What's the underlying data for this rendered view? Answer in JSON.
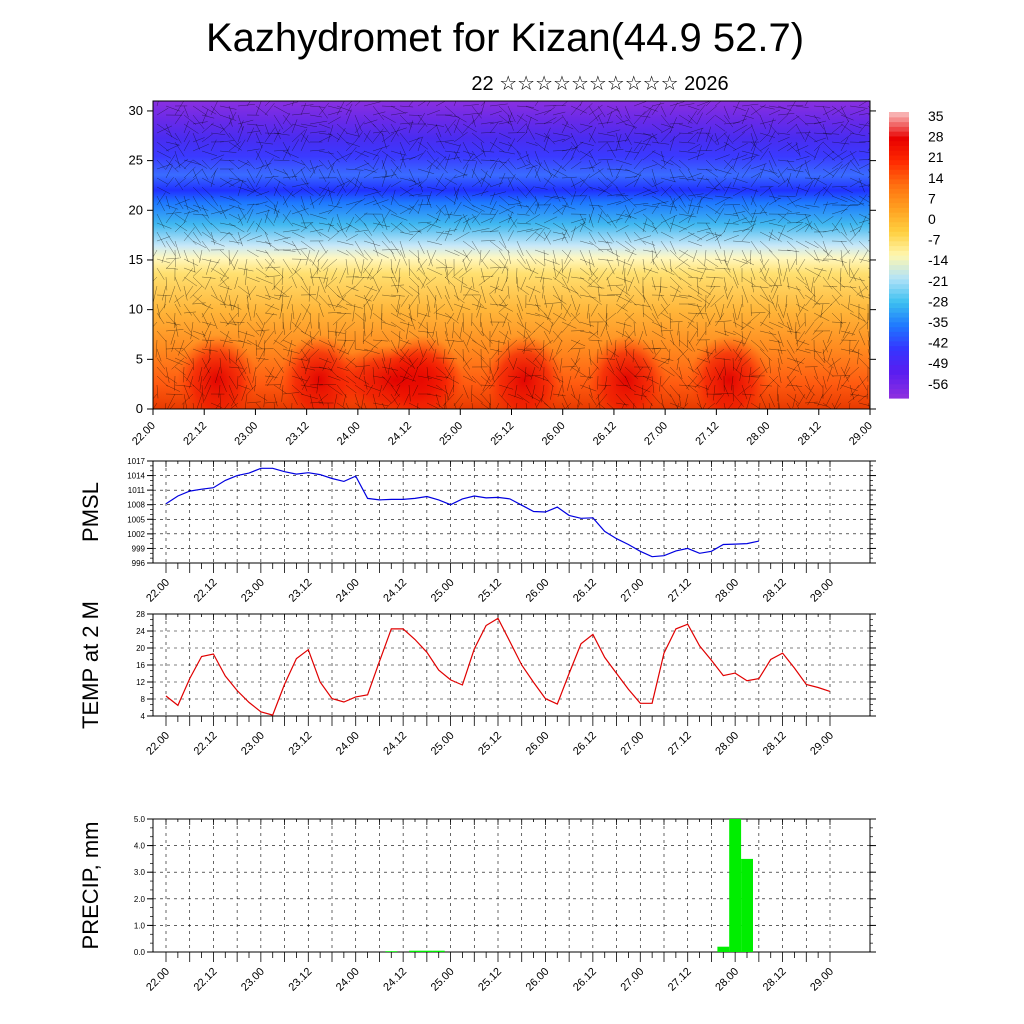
{
  "title": "Kazhydromet for Kizan(44.9 52.7)",
  "subtitle": "22 ☆☆☆☆☆☆☆☆☆☆ 2026",
  "colors": {
    "pmsl_line": "#0000e0",
    "temp_line": "#e00000",
    "precip_bar": "#00ee00",
    "grid": "#000000",
    "cross_section_palette": [
      "#8b2fe0",
      "#5a1df0",
      "#3535ff",
      "#1e78ff",
      "#3cc0f0",
      "#b0e2f8",
      "#fff7b0",
      "#ffd040",
      "#ffa020",
      "#ff7010",
      "#ff2a00",
      "#e80000",
      "#f8b0b0"
    ]
  },
  "chart_data": [
    {
      "type": "heatmap",
      "name": "cross-section",
      "title": "",
      "ylabel": "",
      "ylim": [
        0,
        31
      ],
      "yticks": [
        "0",
        "5",
        "10",
        "15",
        "20",
        "25",
        "30"
      ],
      "xticks": [
        "22.00",
        "22.12",
        "23.00",
        "23.12",
        "24.00",
        "24.12",
        "25.00",
        "25.12",
        "26.00",
        "26.12",
        "27.00",
        "27.12",
        "28.00",
        "28.12",
        "29.00"
      ],
      "colorbar_labels": [
        "35",
        "28",
        "21",
        "14",
        "7",
        "0",
        "-7",
        "-14",
        "-21",
        "-28",
        "-35",
        "-42",
        "-49",
        "-56"
      ]
    },
    {
      "type": "line",
      "name": "pmsl",
      "ylabel": "PMSL",
      "ylim": [
        996,
        1017
      ],
      "yticks": [
        "996",
        "999",
        "1002",
        "1005",
        "1008",
        "1011",
        "1014",
        "1017"
      ],
      "xticks": [
        "22.00",
        "22.12",
        "23.00",
        "23.12",
        "24.00",
        "24.12",
        "25.00",
        "25.12",
        "26.00",
        "26.12",
        "27.00",
        "27.12",
        "28.00",
        "28.12",
        "29.00"
      ],
      "values": [
        1008.2,
        1009.8,
        1010.8,
        1011.2,
        1011.5,
        1013.0,
        1014.0,
        1014.5,
        1015.5,
        1015.5,
        1014.8,
        1014.3,
        1014.6,
        1014.2,
        1013.4,
        1012.8,
        1013.9,
        1009.3,
        1009.0,
        1009.1,
        1009.1,
        1009.3,
        1009.7,
        1009.0,
        1008.0,
        1009.2,
        1009.8,
        1009.4,
        1009.5,
        1009.2,
        1007.9,
        1006.6,
        1006.5,
        1007.5,
        1005.8,
        1005.2,
        1005.3,
        1002.5,
        1001.0,
        999.8,
        998.4,
        997.3,
        997.5,
        998.5,
        999.0,
        998.0,
        998.4,
        999.8,
        999.9,
        1000.0,
        1000.5
      ],
      "x_start_hour": 0,
      "x_step_hours": 3
    },
    {
      "type": "line",
      "name": "temp2m",
      "ylabel": "TEMP at 2 M",
      "ylim": [
        4,
        28
      ],
      "yticks": [
        "4",
        "8",
        "12",
        "16",
        "20",
        "24",
        "28"
      ],
      "xticks": [
        "22.00",
        "22.12",
        "23.00",
        "23.12",
        "24.00",
        "24.12",
        "25.00",
        "25.12",
        "26.00",
        "26.12",
        "27.00",
        "27.12",
        "28.00",
        "28.12",
        "29.00"
      ],
      "values": [
        8.7,
        6.5,
        12.8,
        18.0,
        18.6,
        13.4,
        10.0,
        7.2,
        5.0,
        4.2,
        11.5,
        17.5,
        19.6,
        12.0,
        8.1,
        7.3,
        8.5,
        9.0,
        16.8,
        24.5,
        24.5,
        22.0,
        19.0,
        14.8,
        12.5,
        11.3,
        19.8,
        25.3,
        27.0,
        21.5,
        16.0,
        11.9,
        8.1,
        6.8,
        14.0,
        21.0,
        23.2,
        17.8,
        14.0,
        10.3,
        7.0,
        7.0,
        18.8,
        24.5,
        25.6,
        20.5,
        17.1,
        13.5,
        14.1,
        12.3,
        12.8,
        17.3,
        18.8,
        15.3,
        11.4,
        10.7,
        9.8
      ],
      "x_start_hour": 0,
      "x_step_hours": 3
    },
    {
      "type": "bar",
      "name": "precip",
      "ylabel": "PRECIP, mm",
      "ylim": [
        0,
        5
      ],
      "yticks": [
        "0.0",
        "1.0",
        "2.0",
        "3.0",
        "4.0",
        "5.0"
      ],
      "xticks": [
        "22.00",
        "22.12",
        "23.00",
        "23.12",
        "24.00",
        "24.12",
        "25.00",
        "25.12",
        "26.00",
        "26.12",
        "27.00",
        "27.12",
        "28.00",
        "28.12",
        "29.00"
      ],
      "bars": [
        {
          "hour": 57,
          "value": 0.03
        },
        {
          "hour": 63,
          "value": 0.05
        },
        {
          "hour": 66,
          "value": 0.05
        },
        {
          "hour": 69,
          "value": 0.05
        },
        {
          "hour": 141,
          "value": 0.2
        },
        {
          "hour": 144,
          "value": 5.0
        },
        {
          "hour": 147,
          "value": 3.5
        }
      ]
    }
  ]
}
